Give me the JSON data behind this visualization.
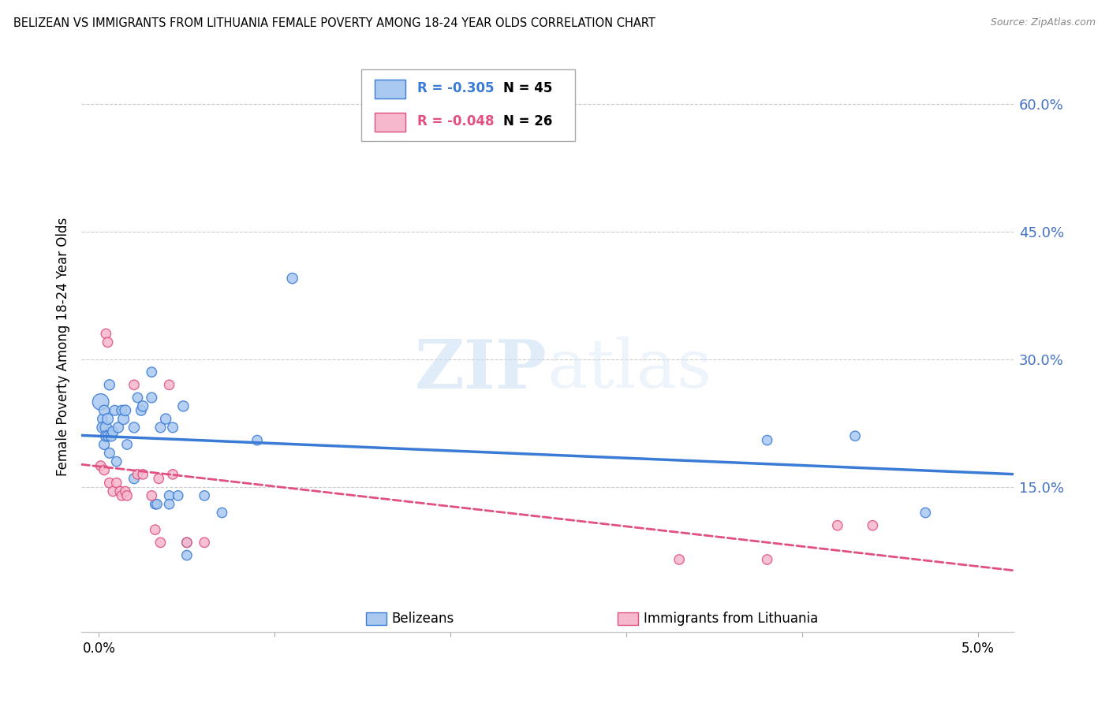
{
  "title": "BELIZEAN VS IMMIGRANTS FROM LITHUANIA FEMALE POVERTY AMONG 18-24 YEAR OLDS CORRELATION CHART",
  "source": "Source: ZipAtlas.com",
  "ylabel": "Female Poverty Among 18-24 Year Olds",
  "right_yticks": [
    0.0,
    0.15,
    0.3,
    0.45,
    0.6
  ],
  "right_yticklabels": [
    "",
    "15.0%",
    "30.0%",
    "45.0%",
    "60.0%"
  ],
  "belizean_R": -0.305,
  "belizean_N": 45,
  "lithuania_R": -0.048,
  "lithuania_N": 26,
  "belizean_color": "#a8c8f0",
  "belizean_line_color": "#3a7bd5",
  "lithuania_color": "#f5b8cc",
  "lithuania_line_color": "#e05080",
  "xlim": [
    -0.001,
    0.052
  ],
  "ylim": [
    -0.02,
    0.65
  ],
  "belizean_x": [
    0.0001,
    0.0002,
    0.0002,
    0.0003,
    0.0003,
    0.0004,
    0.0004,
    0.0005,
    0.0005,
    0.0006,
    0.0006,
    0.0007,
    0.0008,
    0.0009,
    0.001,
    0.0011,
    0.0013,
    0.0014,
    0.0015,
    0.0016,
    0.002,
    0.002,
    0.0022,
    0.0024,
    0.0025,
    0.003,
    0.0032,
    0.0033,
    0.0035,
    0.0038,
    0.004,
    0.004,
    0.0042,
    0.0045,
    0.0048,
    0.005,
    0.005,
    0.006,
    0.007,
    0.009,
    0.011,
    0.038,
    0.043,
    0.047,
    0.003
  ],
  "belizean_y": [
    0.25,
    0.23,
    0.22,
    0.24,
    0.2,
    0.22,
    0.21,
    0.23,
    0.21,
    0.19,
    0.27,
    0.21,
    0.215,
    0.24,
    0.18,
    0.22,
    0.24,
    0.23,
    0.24,
    0.2,
    0.16,
    0.22,
    0.255,
    0.24,
    0.245,
    0.255,
    0.13,
    0.13,
    0.22,
    0.23,
    0.14,
    0.13,
    0.22,
    0.14,
    0.245,
    0.07,
    0.085,
    0.14,
    0.12,
    0.205,
    0.395,
    0.205,
    0.21,
    0.12,
    0.285
  ],
  "belizean_sizes": [
    220,
    80,
    100,
    90,
    85,
    110,
    95,
    100,
    80,
    85,
    90,
    95,
    90,
    85,
    80,
    90,
    85,
    100,
    95,
    80,
    85,
    90,
    80,
    85,
    90,
    85,
    80,
    80,
    85,
    90,
    80,
    80,
    85,
    80,
    90,
    80,
    80,
    80,
    80,
    80,
    90,
    80,
    80,
    80,
    80
  ],
  "lithuania_x": [
    0.0001,
    0.0003,
    0.0004,
    0.0005,
    0.0006,
    0.0008,
    0.001,
    0.0012,
    0.0013,
    0.0015,
    0.0016,
    0.002,
    0.0022,
    0.0025,
    0.003,
    0.0032,
    0.0034,
    0.0035,
    0.004,
    0.0042,
    0.005,
    0.006,
    0.033,
    0.038,
    0.042,
    0.044
  ],
  "lithuania_y": [
    0.175,
    0.17,
    0.33,
    0.32,
    0.155,
    0.145,
    0.155,
    0.145,
    0.14,
    0.145,
    0.14,
    0.27,
    0.165,
    0.165,
    0.14,
    0.1,
    0.16,
    0.085,
    0.27,
    0.165,
    0.085,
    0.085,
    0.065,
    0.065,
    0.105,
    0.105
  ],
  "lithuania_sizes": [
    80,
    80,
    80,
    80,
    80,
    80,
    80,
    80,
    80,
    80,
    80,
    80,
    80,
    80,
    80,
    80,
    80,
    80,
    80,
    80,
    80,
    80,
    80,
    80,
    80,
    80
  ]
}
